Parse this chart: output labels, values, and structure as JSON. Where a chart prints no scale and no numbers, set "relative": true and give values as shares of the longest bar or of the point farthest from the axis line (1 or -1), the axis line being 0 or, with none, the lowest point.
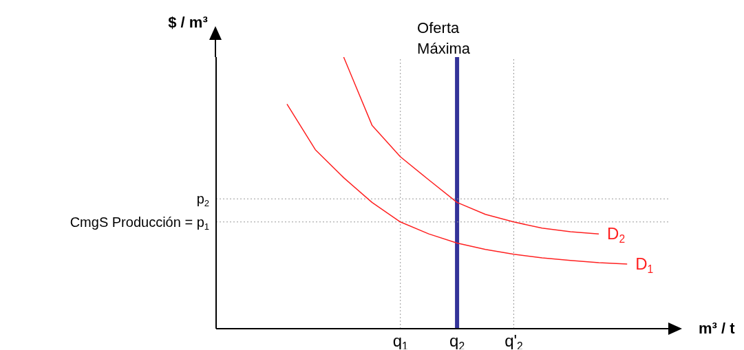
{
  "chart_data": {
    "type": "line",
    "relative": true,
    "xlabel": "m³ / t",
    "ylabel": "$ / m³",
    "legend": false,
    "grid": false,
    "marker": "none",
    "categories": [
      null,
      null,
      null,
      null,
      null,
      null,
      "q$_{1}$",
      null,
      "q$_{2}$",
      null,
      "q'$_{2}$",
      null,
      null,
      null,
      null,
      null
    ],
    "series": [
      {
        "name": "D$_{1}$",
        "color": "#ff2020",
        "values": [
          null,
          null,
          0.827,
          0.659,
          0.556,
          0.465,
          0.393,
          0.349,
          0.315,
          0.292,
          0.274,
          0.261,
          0.251,
          0.243,
          0.238,
          null
        ]
      },
      {
        "name": "D$_{2}$",
        "color": "#ff2020",
        "values": [
          null,
          null,
          null,
          null,
          1,
          0.749,
          0.633,
          0.548,
          0.465,
          0.421,
          0.393,
          0.37,
          0.357,
          0.349,
          null,
          null
        ]
      }
    ],
    "ref_lines": [
      {
        "axis": "x",
        "value": "q$_{2}$",
        "label": "Oferta Máxima",
        "line_style": "solid",
        "color": "#333399"
      },
      {
        "axis": "x",
        "value": "q$_{1}$",
        "line_style": "dotted",
        "color": "#999999"
      },
      {
        "axis": "x",
        "value": "q'$_{2}$",
        "line_style": "dotted",
        "color": "#999999"
      },
      {
        "axis": "y",
        "value": 0.478,
        "label": "p$_{2}$",
        "line_style": "dotted",
        "color": "#999999"
      },
      {
        "axis": "y",
        "value": 0.393,
        "label": "CmgS Producción = p$_{1}$",
        "line_style": "dotted",
        "color": "#999999"
      }
    ]
  }
}
